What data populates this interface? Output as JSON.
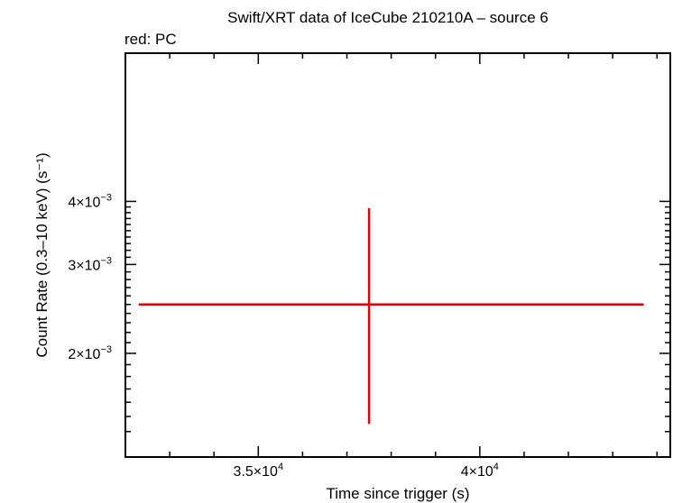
{
  "chart_data": {
    "type": "scatter",
    "title": "Swift/XRT data of IceCube 210210A – source 6",
    "legend_text": "red: PC",
    "xlabel": "Time since trigger (s)",
    "ylabel": "Count Rate (0.3–10 keV) (s⁻¹)",
    "xlim": [
      32000,
      44300
    ],
    "ylim": [
      0.0014,
      0.004
    ],
    "xticks": [
      {
        "value": 35000,
        "mant": "3.5×10",
        "exp": "4"
      },
      {
        "value": 40000,
        "mant": "4×10",
        "exp": "4"
      }
    ],
    "yticks": [
      {
        "value": 0.002,
        "mant": "2×10",
        "exp": "−3"
      },
      {
        "value": 0.003,
        "mant": "3×10",
        "exp": "−3"
      },
      {
        "value": 0.004,
        "mant": "4×10",
        "exp": "−3"
      }
    ],
    "series": [
      {
        "color": "#e00000",
        "points": [
          {
            "x": 37500,
            "xerr_low": 5200,
            "xerr_high": 6200,
            "y": 0.0025,
            "yerr_low": 0.00105,
            "yerr_high": 0.00138
          }
        ]
      }
    ]
  }
}
